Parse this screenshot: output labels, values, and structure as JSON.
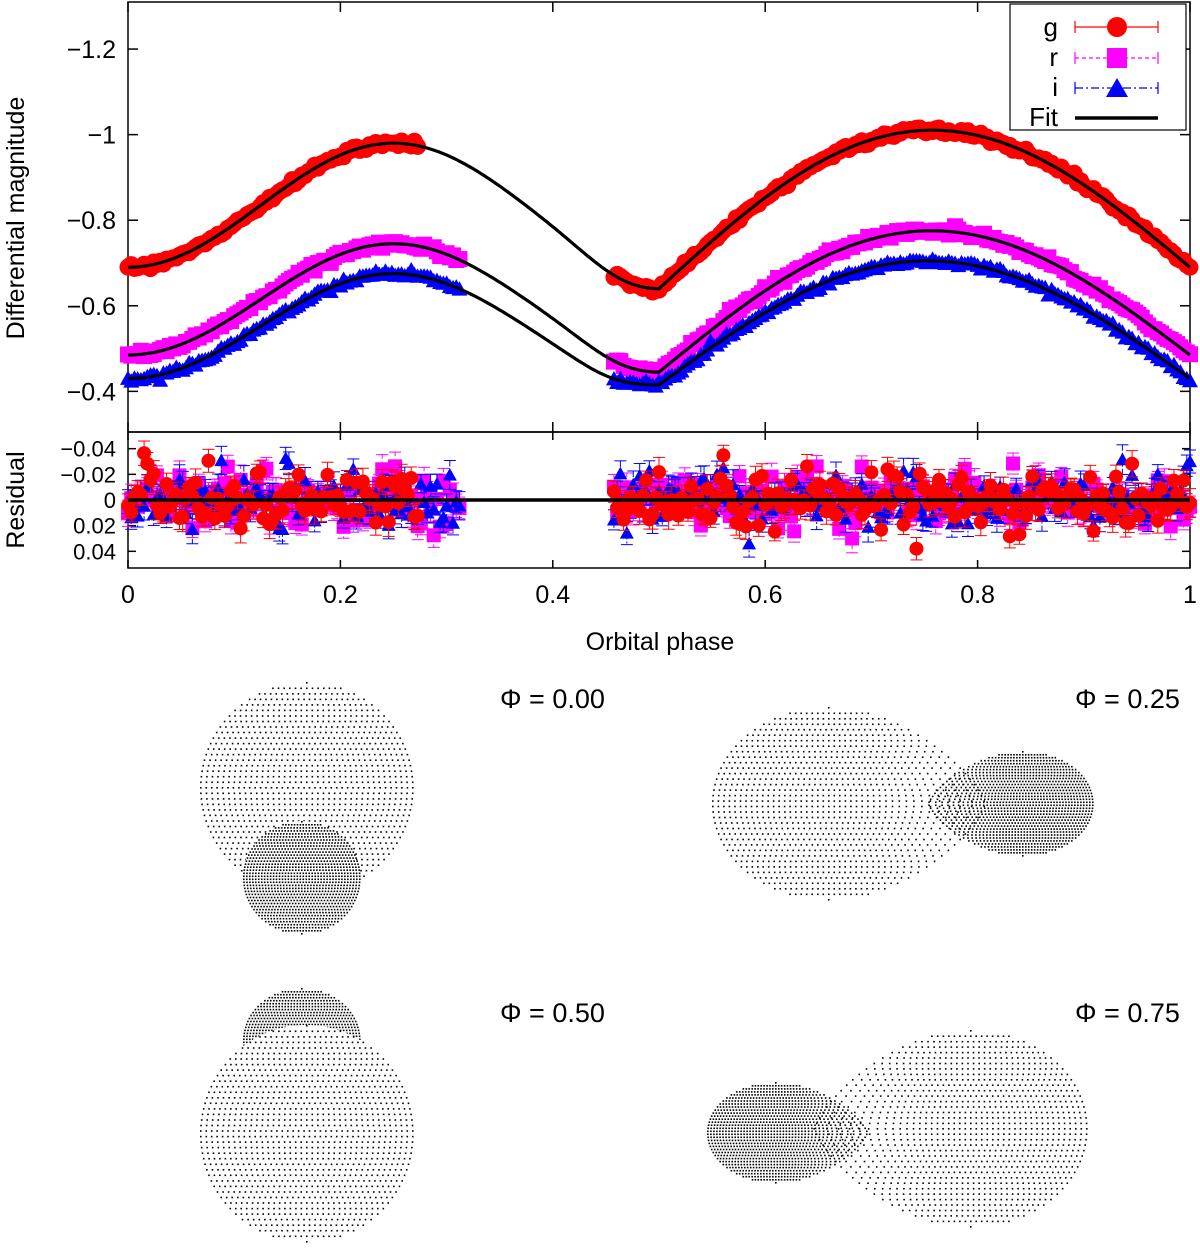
{
  "chart_data": [
    {
      "type": "line",
      "panel": "light-curve",
      "xlabel": "Orbital phase",
      "ylabel": "Differential magnitude",
      "xlim": [
        0,
        1
      ],
      "ylim": [
        -1.31,
        -0.305
      ],
      "y_inverted": true,
      "grid": false,
      "legend_position": "top-right",
      "y_ticks": [
        -1.2,
        -1,
        -0.8,
        -0.6,
        -0.4
      ],
      "y_tick_labels": [
        "−1.2",
        "−1",
        "−0.8",
        "−0.6",
        "−0.4"
      ],
      "series": [
        {
          "name": "g",
          "color": "#ff0000",
          "marker": "circle",
          "errorbar": "solid",
          "base": -0.69,
          "amp_primary": 0.29,
          "amp_secondary": 0.32,
          "min_level": -0.64,
          "observed_ranges": [
            [
              0,
              0.275
            ],
            [
              0.455,
              1.0
            ]
          ]
        },
        {
          "name": "r",
          "color": "#ff00ff",
          "marker": "square",
          "errorbar": "dashed",
          "base": -0.485,
          "amp_primary": 0.26,
          "amp_secondary": 0.29,
          "min_level": -0.445,
          "observed_ranges": [
            [
              0,
              0.315
            ],
            [
              0.455,
              1.0
            ]
          ]
        },
        {
          "name": "i",
          "color": "#0000ff",
          "marker": "triangle",
          "errorbar": "dashdot",
          "base": -0.43,
          "amp_primary": 0.245,
          "amp_secondary": 0.275,
          "min_level": -0.415,
          "observed_ranges": [
            [
              0,
              0.315
            ],
            [
              0.455,
              1.0
            ]
          ]
        },
        {
          "name": "Fit",
          "color": "#000000",
          "marker": "none",
          "errorbar": "none"
        }
      ]
    },
    {
      "type": "scatter",
      "panel": "residuals",
      "xlabel": "Orbital phase",
      "ylabel": "Residual",
      "xlim": [
        0,
        1
      ],
      "ylim": [
        0.053,
        -0.053
      ],
      "y_ticks": [
        -0.04,
        -0.02,
        0,
        0.02,
        0.04
      ],
      "y_tick_labels": [
        "−0.04",
        "−0.02",
        "0",
        "0.02",
        "0.04"
      ],
      "x_ticks": [
        0,
        0.2,
        0.4,
        0.6,
        0.8,
        1
      ],
      "x_tick_labels": [
        "0",
        "0.2",
        "0.4",
        "0.6",
        "0.8",
        "1"
      ],
      "scatter_sigma": 0.012,
      "zero_line": 0
    }
  ],
  "legend": {
    "g": "g",
    "r": "r",
    "i": "i",
    "fit": "Fit"
  },
  "phases": [
    {
      "label": "Φ = 0.00",
      "phase": 0.0
    },
    {
      "label": "Φ = 0.25",
      "phase": 0.25
    },
    {
      "label": "Φ = 0.50",
      "phase": 0.5
    },
    {
      "label": "Φ = 0.75",
      "phase": 0.75
    }
  ],
  "colors": {
    "g": "#ff0000",
    "r": "#ff00ff",
    "i": "#0000ff",
    "fit": "#000000"
  }
}
